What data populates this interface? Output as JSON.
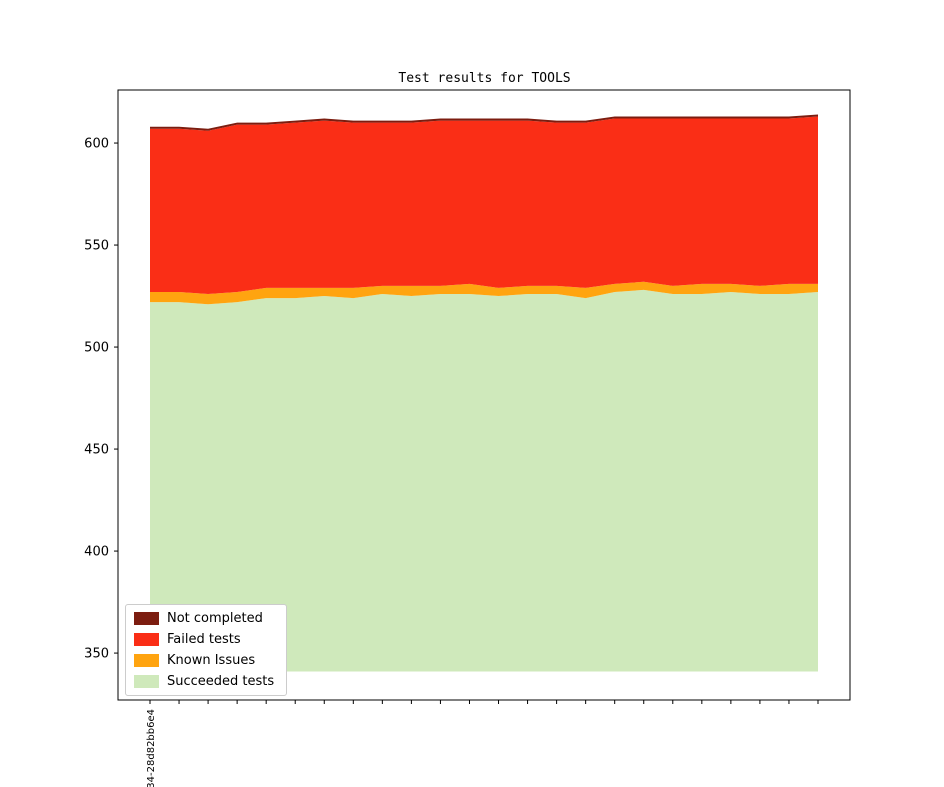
{
  "chart_data": {
    "type": "area",
    "stacked": true,
    "title": "Test results for TOOLS",
    "n_points": 24,
    "ylim": [
      327,
      626
    ],
    "yticks": [
      350,
      400,
      450,
      500,
      550,
      600
    ],
    "baseline": 341,
    "grid": false,
    "x_tick_labels": [
      "34-28d82bb6e4"
    ],
    "series": [
      {
        "name": "Succeeded tests",
        "color": "#cfe9bb",
        "tops": [
          522,
          522,
          521,
          522,
          524,
          524,
          525,
          524,
          526,
          525,
          526,
          526,
          525,
          526,
          526,
          524,
          527,
          528,
          526,
          526,
          527,
          526,
          526,
          527
        ]
      },
      {
        "name": "Known Issues",
        "color": "#ffa410",
        "tops": [
          527,
          527,
          526,
          527,
          529,
          529,
          529,
          529,
          530,
          530,
          530,
          531,
          529,
          530,
          530,
          529,
          531,
          532,
          530,
          531,
          531,
          530,
          531,
          531
        ]
      },
      {
        "name": "Failed tests",
        "color": "#fa2e16",
        "tops": [
          607,
          607,
          606,
          609,
          609,
          610,
          611,
          610,
          610,
          610,
          611,
          611,
          611,
          611,
          610,
          610,
          612,
          612,
          612,
          612,
          612,
          612,
          612,
          613
        ]
      },
      {
        "name": "Not completed",
        "color": "#7c1d10",
        "tops": [
          608,
          608,
          607,
          610,
          610,
          611,
          612,
          611,
          611,
          611,
          612,
          612,
          612,
          612,
          611,
          611,
          613,
          613,
          613,
          613,
          613,
          613,
          613,
          614
        ]
      }
    ],
    "legend": {
      "position": "lower left",
      "items": [
        {
          "label": "Not completed",
          "color": "#7c1d10"
        },
        {
          "label": "Failed tests",
          "color": "#fa2e16"
        },
        {
          "label": "Known Issues",
          "color": "#ffa410"
        },
        {
          "label": "Succeeded tests",
          "color": "#cfe9bb"
        }
      ]
    }
  }
}
